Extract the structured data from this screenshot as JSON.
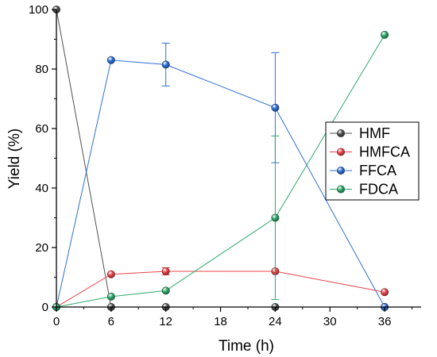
{
  "chart_data": {
    "type": "line",
    "xlabel": "Time (h)",
    "ylabel": "Yield (%)",
    "xlim": [
      0,
      40
    ],
    "ylim": [
      0,
      100
    ],
    "xticks": [
      0,
      6,
      12,
      18,
      24,
      30,
      36
    ],
    "yticks": [
      0,
      20,
      40,
      60,
      80,
      100
    ],
    "grid": false,
    "legend_position": "right",
    "series": [
      {
        "name": "HMF",
        "color": "#505050",
        "points": [
          {
            "x": 0,
            "y": 100,
            "err": 0
          },
          {
            "x": 6,
            "y": 0,
            "err": 0
          },
          {
            "x": 12,
            "y": 0,
            "err": 0
          },
          {
            "x": 24,
            "y": 0,
            "err": 0
          },
          {
            "x": 36,
            "y": 0,
            "err": 0
          }
        ]
      },
      {
        "name": "HMFCA",
        "color": "#e8444a",
        "points": [
          {
            "x": 0,
            "y": 0,
            "err": 0
          },
          {
            "x": 6,
            "y": 11,
            "err": 0
          },
          {
            "x": 12,
            "y": 12,
            "err": 1.2
          },
          {
            "x": 24,
            "y": 12,
            "err": 0
          },
          {
            "x": 36,
            "y": 5,
            "err": 0
          }
        ]
      },
      {
        "name": "FFCA",
        "color": "#2f6fd8",
        "points": [
          {
            "x": 0,
            "y": 0,
            "err": 0
          },
          {
            "x": 6,
            "y": 83,
            "err": 0
          },
          {
            "x": 12,
            "y": 81.5,
            "err": 7.2
          },
          {
            "x": 24,
            "y": 67,
            "err": 18.5
          },
          {
            "x": 36,
            "y": 0,
            "err": 0
          }
        ]
      },
      {
        "name": "FDCA",
        "color": "#2ea86a",
        "points": [
          {
            "x": 0,
            "y": 0,
            "err": 0
          },
          {
            "x": 6,
            "y": 3.5,
            "err": 0
          },
          {
            "x": 12,
            "y": 5.5,
            "err": 0
          },
          {
            "x": 24,
            "y": 30,
            "err": 27.5
          },
          {
            "x": 36,
            "y": 91.5,
            "err": 0
          }
        ]
      }
    ]
  }
}
